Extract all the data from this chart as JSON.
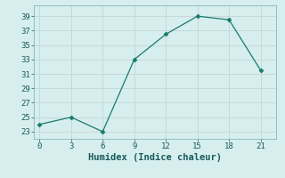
{
  "x": [
    0,
    3,
    6,
    9,
    12,
    15,
    18,
    21
  ],
  "y": [
    24,
    25,
    23,
    33,
    36.5,
    39,
    38.5,
    31.5
  ],
  "line_color": "#1a7a6e",
  "marker": "D",
  "marker_size": 2.5,
  "background_color": "#d6eeee",
  "grid_color": "#c8d8d8",
  "xlabel": "Humidex (Indice chaleur)",
  "xlim": [
    -0.5,
    22.5
  ],
  "ylim": [
    22,
    40.5
  ],
  "xticks": [
    0,
    3,
    6,
    9,
    12,
    15,
    18,
    21
  ],
  "yticks": [
    23,
    25,
    27,
    29,
    31,
    33,
    35,
    37,
    39
  ],
  "tick_label_fontsize": 6.5,
  "xlabel_fontsize": 7.5,
  "font_family": "monospace",
  "linewidth": 0.9
}
